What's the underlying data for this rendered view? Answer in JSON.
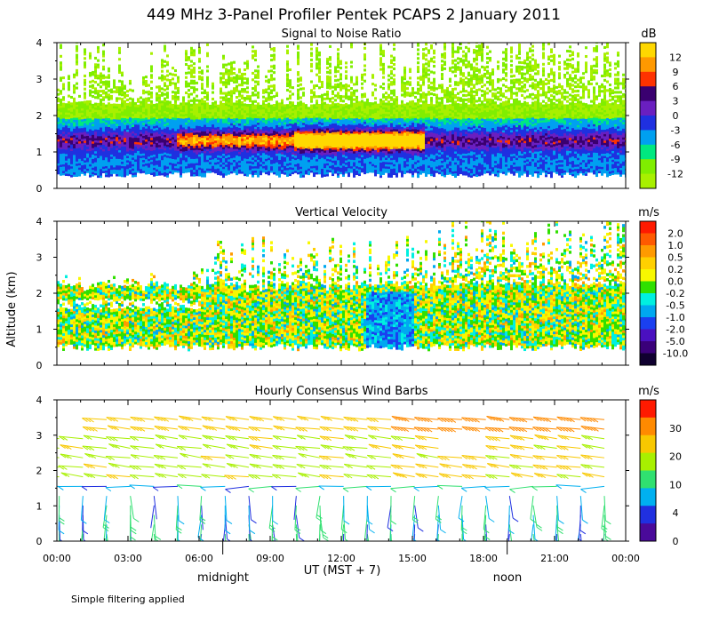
{
  "figure": {
    "title": "449 MHz 3-Panel Profiler Pentek PCAPS  2 January 2011",
    "ylabel": "Altitude (km)",
    "xlabel": "UT  (MST + 7)",
    "midnight_label": "midnight",
    "noon_label": "noon",
    "footnote": "Simple filtering applied"
  },
  "chart_data": [
    {
      "type": "heatmap",
      "title": "Signal to Noise Ratio",
      "unit": "dB",
      "x_ticks": [
        "00:00",
        "03:00",
        "06:00",
        "09:00",
        "12:00",
        "15:00",
        "18:00",
        "21:00",
        "00:00"
      ],
      "xlim": [
        0,
        24
      ],
      "ylim": [
        0,
        4
      ],
      "y_ticks": [
        "0",
        "1",
        "2",
        "3",
        "4"
      ],
      "colorbar": {
        "labels": [
          "12",
          "9",
          "6",
          "3",
          "0",
          "-3",
          "-6",
          "-9",
          "-12"
        ],
        "colors": [
          "#ffd800",
          "#ff9900",
          "#ff3300",
          "#3a0070",
          "#6a1fc0",
          "#1f30e0",
          "#00a0f0",
          "#00e880",
          "#80ee00",
          "#a8f000"
        ]
      },
      "features": "strong echo 0.5-1.8 km, peak ~12 dB near 1.3 km 10:00-15:30 UT; scattered weak returns to 4 km"
    },
    {
      "type": "heatmap",
      "title": "Vertical Velocity",
      "unit": "m/s",
      "x_ticks": [
        "00:00",
        "03:00",
        "06:00",
        "09:00",
        "12:00",
        "15:00",
        "18:00",
        "21:00",
        "00:00"
      ],
      "xlim": [
        0,
        24
      ],
      "ylim": [
        0,
        4
      ],
      "y_ticks": [
        "0",
        "1",
        "2",
        "3",
        "4"
      ],
      "colorbar": {
        "labels": [
          "2.0",
          "1.0",
          "0.5",
          "0.2",
          "0.0",
          "-0.2",
          "-0.5",
          "-1.0",
          "-2.0",
          "-5.0",
          "-10.0"
        ],
        "colors": [
          "#ff1a00",
          "#ff5a00",
          "#ff9a00",
          "#ffd000",
          "#f8f800",
          "#30e000",
          "#00f0e0",
          "#00a8f0",
          "#1a40f0",
          "#4a10c0",
          "#3a007a",
          "#100030"
        ]
      },
      "features": "mostly near zero (-0.5 to 0.5 m/s) 0.5-2.2 km; downward (blue) 13:00-15:00 UT below 2 km"
    },
    {
      "type": "scatter",
      "title": "Hourly Consensus Wind Barbs",
      "unit": "m/s",
      "x_ticks": [
        "00:00",
        "03:00",
        "06:00",
        "09:00",
        "12:00",
        "15:00",
        "18:00",
        "21:00",
        "00:00"
      ],
      "xlim": [
        0,
        24
      ],
      "ylim": [
        0,
        4
      ],
      "y_ticks": [
        "0",
        "1",
        "2",
        "3",
        "4"
      ],
      "colorbar": {
        "labels": [
          "30",
          "20",
          "10",
          "4",
          "0"
        ],
        "colors": [
          "#ff1a00",
          "#ff8a00",
          "#f8c800",
          "#a8f000",
          "#30e070",
          "#00b0f0",
          "#2030e0",
          "#4a0a9a"
        ]
      },
      "features": "weak winds (0-10 m/s) below 1.5 km; westerly 10-15 m/s near 2-2.5 km; 20-28 m/s above 3 km after 14:00 UT"
    }
  ]
}
